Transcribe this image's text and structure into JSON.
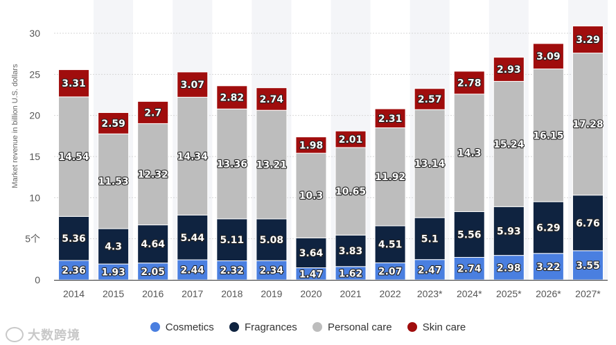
{
  "chart_data": {
    "type": "bar",
    "stacked": true,
    "title": "",
    "xlabel": "",
    "ylabel": "Market revenue in billion U.S. dollars",
    "ylim": [
      0,
      30
    ],
    "yticks": [
      "0",
      "5个",
      "10",
      "15",
      "20",
      "25",
      "30"
    ],
    "categories": [
      "2014",
      "2015",
      "2016",
      "2017",
      "2018",
      "2019",
      "2020",
      "2021",
      "2022",
      "2023*",
      "2024*",
      "2025*",
      "2026*",
      "2027*"
    ],
    "series": [
      {
        "name": "Cosmetics",
        "color": "#4a7fe0",
        "values": [
          2.36,
          1.93,
          2.05,
          2.44,
          2.32,
          2.34,
          1.47,
          1.62,
          2.07,
          2.47,
          2.74,
          2.98,
          3.22,
          3.55
        ]
      },
      {
        "name": "Fragrances",
        "color": "#0f2340",
        "values": [
          5.36,
          4.3,
          4.64,
          5.44,
          5.11,
          5.08,
          3.64,
          3.83,
          4.51,
          5.1,
          5.56,
          5.93,
          6.29,
          6.76
        ]
      },
      {
        "name": "Personal care",
        "color": "#bdbdbd",
        "values": [
          14.54,
          11.53,
          12.32,
          14.34,
          13.36,
          13.21,
          10.3,
          10.65,
          11.92,
          13.14,
          14.3,
          15.24,
          16.15,
          17.28
        ]
      },
      {
        "name": "Skin care",
        "color": "#a00d0d",
        "values": [
          3.31,
          2.59,
          2.7,
          3.07,
          2.82,
          2.74,
          1.98,
          2.01,
          2.31,
          2.57,
          2.78,
          2.93,
          3.09,
          3.29
        ]
      }
    ],
    "legend_position": "bottom",
    "grid": true
  },
  "watermark": {
    "text": "大数跨境",
    "icon": "watermark-logo-icon"
  }
}
